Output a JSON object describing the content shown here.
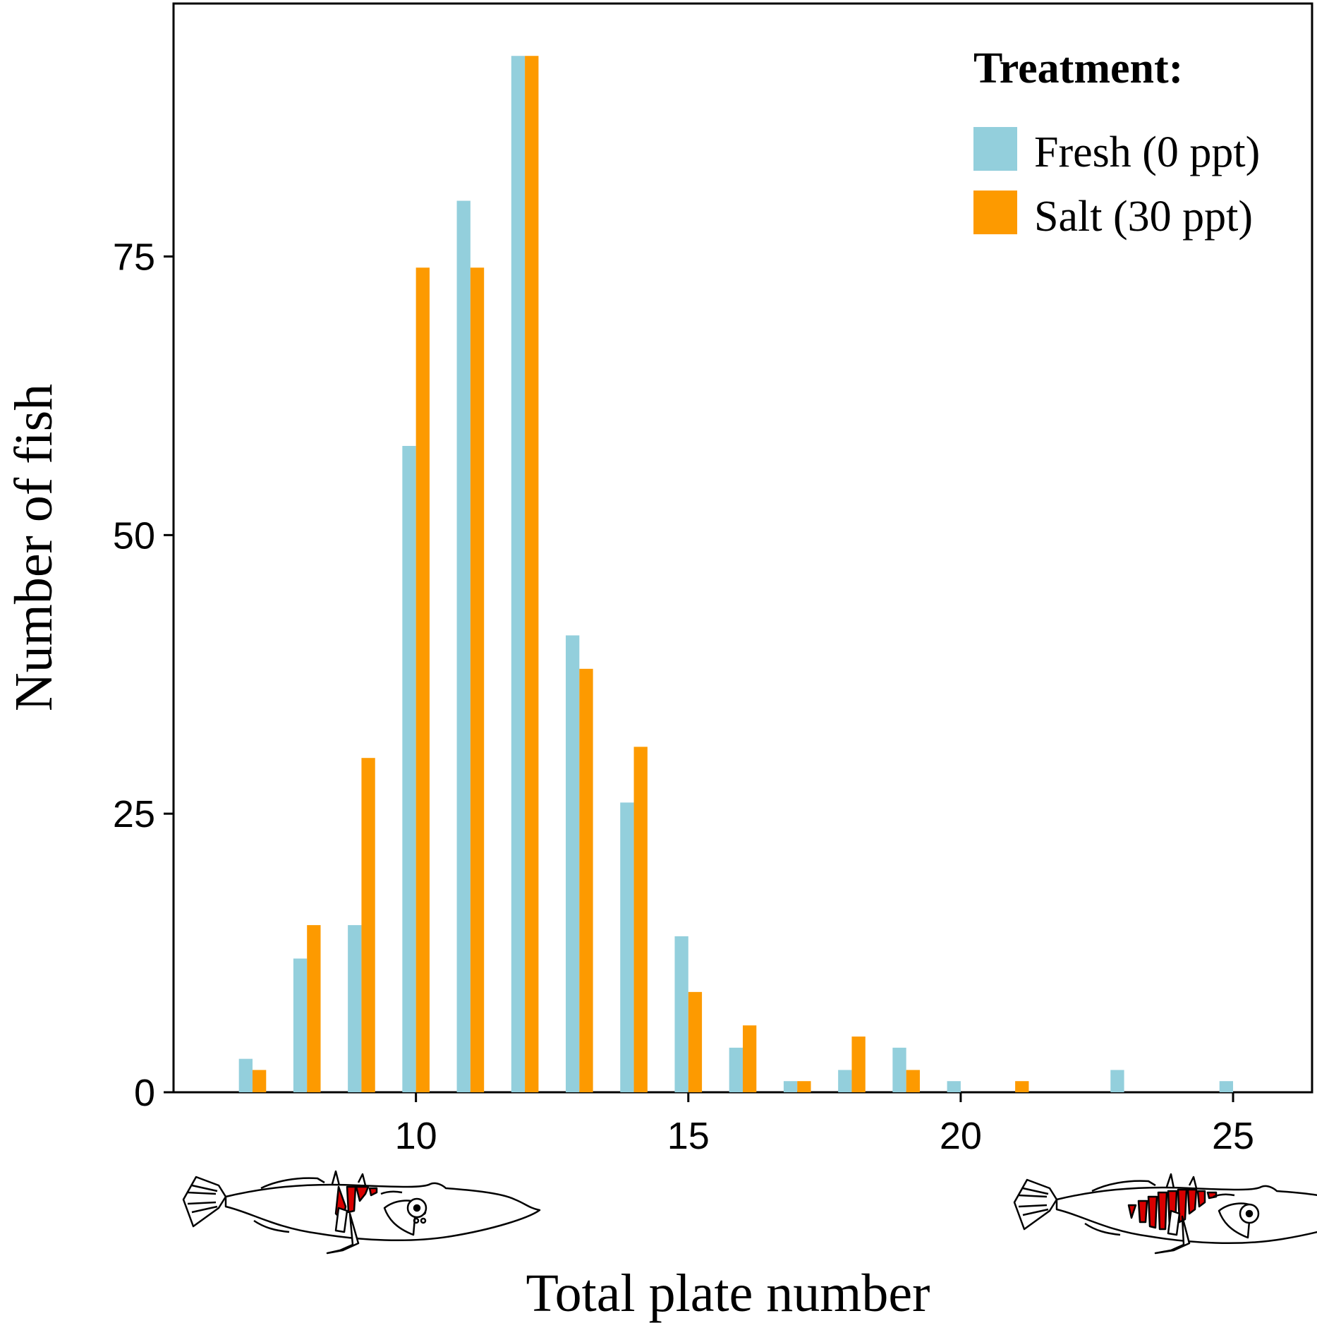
{
  "chart_data": {
    "type": "bar",
    "xlabel": "Total plate number",
    "ylabel": "Number of fish",
    "xlim": [
      5.55,
      26.45
    ],
    "ylim": [
      0,
      97.7
    ],
    "xticks": [
      "10",
      "15",
      "20",
      "25"
    ],
    "yticks": [
      "0",
      "25",
      "50",
      "75"
    ],
    "grid": false,
    "legend": {
      "title": "Treatment:",
      "position": "top-right"
    },
    "x": [
      7,
      8,
      9,
      10,
      11,
      12,
      13,
      14,
      15,
      16,
      17,
      18,
      19,
      20,
      21,
      23,
      25
    ],
    "series": [
      {
        "name": "Fresh (0 ppt)",
        "color": "#93cfdc",
        "values": [
          3,
          12,
          15,
          58,
          80,
          93,
          41,
          26,
          14,
          4,
          1,
          2,
          4,
          1,
          0,
          2,
          1
        ]
      },
      {
        "name": "Salt (30 ppt)",
        "color": "#fd9a00",
        "values": [
          2,
          15,
          30,
          74,
          74,
          93,
          38,
          31,
          9,
          6,
          1,
          5,
          2,
          0,
          1,
          0,
          0
        ]
      }
    ],
    "annotations": [
      {
        "icon": "low-plated-fish-icon",
        "near": "x-axis-left"
      },
      {
        "icon": "fully-plated-fish-icon",
        "near": "x-axis-right"
      }
    ]
  }
}
